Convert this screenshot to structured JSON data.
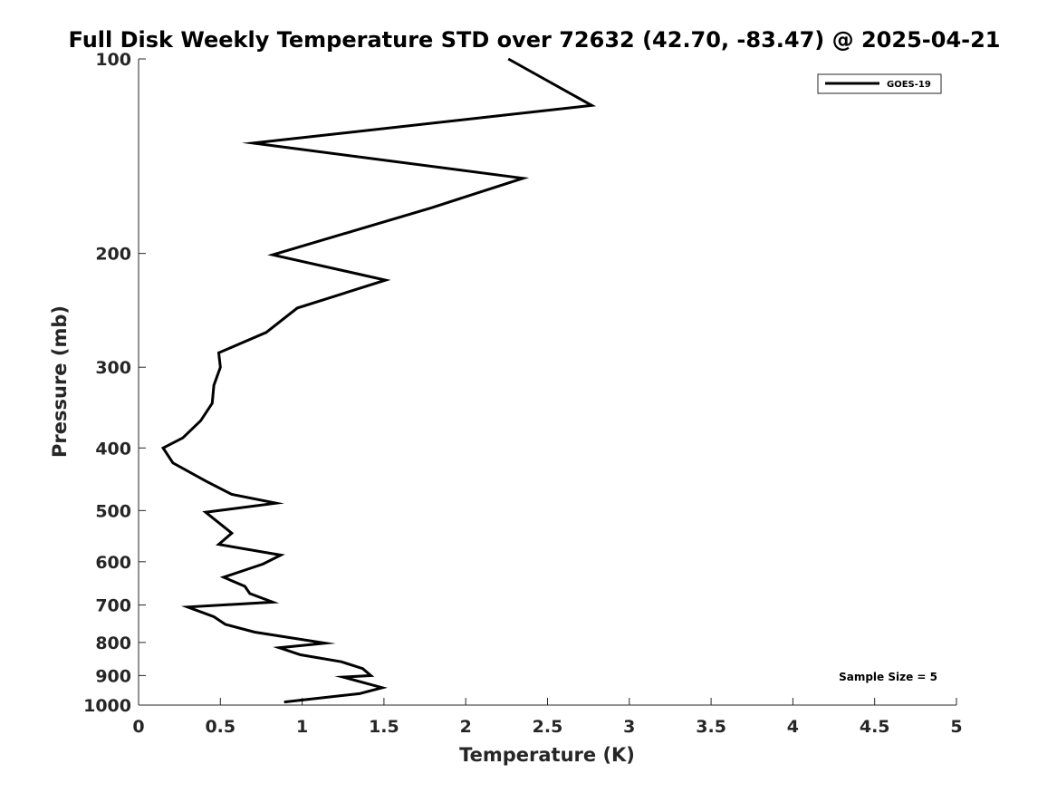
{
  "chart_data": {
    "type": "line",
    "title": "Full Disk Weekly Temperature STD over 72632 (42.70, -83.47) @ 2025-04-21",
    "xlabel": "Temperature (K)",
    "ylabel": "Pressure (mb)",
    "xlim": [
      0,
      5
    ],
    "ylim": [
      100,
      1000
    ],
    "yscale": "log-reversed",
    "x_ticks": [
      "0",
      "0.5",
      "1",
      "1.5",
      "2",
      "2.5",
      "3",
      "3.5",
      "4",
      "4.5",
      "5"
    ],
    "y_ticks": [
      "100",
      "200",
      "300",
      "400",
      "500",
      "600",
      "700",
      "800",
      "900",
      "1000"
    ],
    "legend": {
      "entries": [
        "GOES-19"
      ],
      "location": "top-right"
    },
    "annotation": "Sample Size = 5",
    "series": [
      {
        "name": "GOES-19",
        "color": "#000000",
        "points": [
          [
            2.26,
            100
          ],
          [
            2.77,
            118
          ],
          [
            0.7,
            135
          ],
          [
            2.35,
            153
          ],
          [
            1.79,
            170
          ],
          [
            0.82,
            201
          ],
          [
            1.51,
            220
          ],
          [
            0.97,
            243
          ],
          [
            0.78,
            265
          ],
          [
            0.49,
            285
          ],
          [
            0.5,
            300
          ],
          [
            0.46,
            320
          ],
          [
            0.45,
            341
          ],
          [
            0.38,
            363
          ],
          [
            0.27,
            386
          ],
          [
            0.15,
            400
          ],
          [
            0.21,
            422
          ],
          [
            0.41,
            450
          ],
          [
            0.57,
            472
          ],
          [
            0.84,
            487
          ],
          [
            0.41,
            503
          ],
          [
            0.57,
            542
          ],
          [
            0.49,
            564
          ],
          [
            0.87,
            586
          ],
          [
            0.76,
            605
          ],
          [
            0.52,
            634
          ],
          [
            0.65,
            655
          ],
          [
            0.68,
            672
          ],
          [
            0.82,
            693
          ],
          [
            0.3,
            705
          ],
          [
            0.46,
            730
          ],
          [
            0.53,
            750
          ],
          [
            0.71,
            771
          ],
          [
            1.14,
            802
          ],
          [
            0.86,
            815
          ],
          [
            0.99,
            836
          ],
          [
            1.24,
            857
          ],
          [
            1.37,
            878
          ],
          [
            1.42,
            900
          ],
          [
            1.25,
            905
          ],
          [
            1.49,
            940
          ],
          [
            1.35,
            960
          ],
          [
            0.89,
            989
          ]
        ]
      }
    ]
  }
}
